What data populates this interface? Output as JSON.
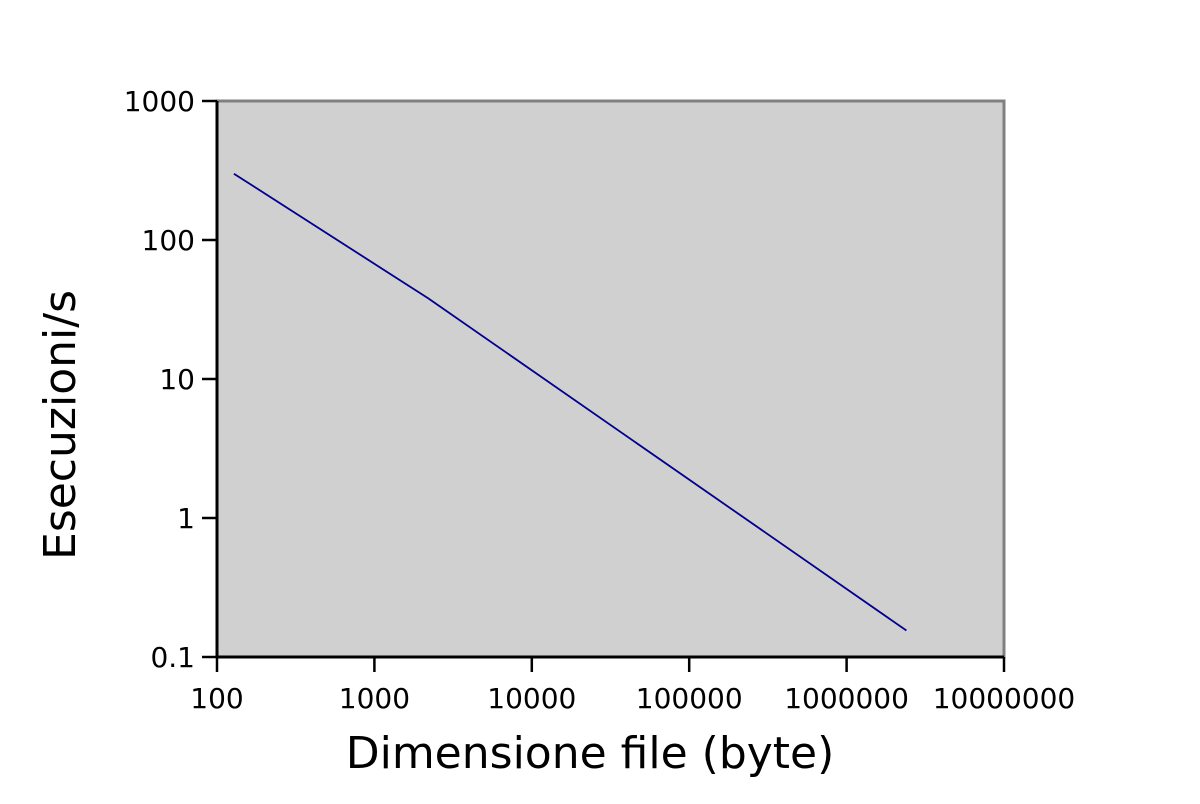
{
  "chart_data": {
    "type": "line",
    "title": "",
    "xlabel": "Dimensione file (byte)",
    "ylabel": "Esecuzioni/s",
    "xscale": "log",
    "yscale": "log",
    "xlim": [
      100,
      10000000
    ],
    "ylim": [
      0.1,
      1000
    ],
    "x_ticks": [
      "100",
      "1000",
      "10000",
      "100000",
      "1000000",
      "10000000"
    ],
    "y_ticks": [
      "0.1",
      "1",
      "10",
      "100",
      "1000"
    ],
    "grid": false,
    "legend": "none",
    "series": [
      {
        "x": [
          128,
          2200,
          2400000
        ],
        "y": [
          300,
          38,
          0.155
        ]
      }
    ],
    "colors": {
      "plot_background": "#d0d0d0",
      "line": "#00008b",
      "frame": "#808080",
      "axis": "#000000"
    }
  }
}
